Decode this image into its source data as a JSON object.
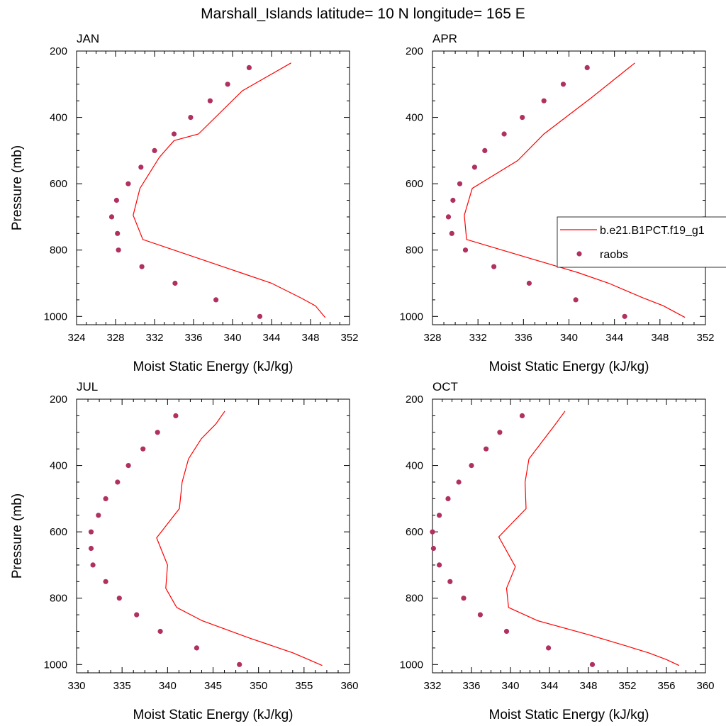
{
  "title": "Marshall_Islands  latitude= 10 N longitude= 165 E",
  "colors": {
    "model_line": "#ff0000",
    "raobs_marker": "#b03060"
  },
  "legend": {
    "items": [
      {
        "label": "b.e21.B1PCT.f19_g1",
        "symbol": "line"
      },
      {
        "label": "raobs",
        "symbol": "marker"
      }
    ]
  },
  "chart_data": [
    {
      "type": "line",
      "title": "JAN",
      "xlabel": "Moist Static Energy (kJ/kg)",
      "ylabel": "Pressure (mb)",
      "xlim": [
        324,
        352
      ],
      "ylim": [
        1025,
        200
      ],
      "xticks": [
        324,
        328,
        332,
        336,
        340,
        344,
        348,
        352
      ],
      "yticks": [
        200,
        400,
        600,
        800,
        1000
      ],
      "series": [
        {
          "name": "b.e21.B1PCT.f19_g1",
          "style": "line",
          "x": [
            349.5,
            348.5,
            347.0,
            344.0,
            340.8,
            330.8,
            329.8,
            330.5,
            332.5,
            334.0,
            336.5,
            341.0,
            346.0
          ],
          "y": [
            1003,
            968,
            944,
            900,
            868,
            768,
            695,
            614,
            520,
            470,
            450,
            320,
            236
          ]
        },
        {
          "name": "raobs",
          "style": "marker",
          "x": [
            342.8,
            338.3,
            334.1,
            330.7,
            328.3,
            328.2,
            327.6,
            328.1,
            329.3,
            330.6,
            332.0,
            334.0,
            335.7,
            337.7,
            339.5,
            341.7
          ],
          "y": [
            1000,
            950,
            900,
            850,
            800,
            750,
            700,
            650,
            600,
            550,
            500,
            450,
            400,
            350,
            300,
            250
          ]
        }
      ]
    },
    {
      "type": "line",
      "title": "APR",
      "xlabel": "Moist Static Energy (kJ/kg)",
      "ylabel": "",
      "xlim": [
        328,
        352
      ],
      "ylim": [
        1025,
        200
      ],
      "xticks": [
        328,
        332,
        336,
        340,
        344,
        348,
        352
      ],
      "yticks": [
        200,
        400,
        600,
        800,
        1000
      ],
      "series": [
        {
          "name": "b.e21.B1PCT.f19_g1",
          "style": "line",
          "x": [
            350.2,
            348.3,
            346.5,
            343.5,
            340.8,
            331.0,
            330.8,
            331.5,
            335.5,
            337.8,
            342.0,
            345.8
          ],
          "y": [
            1003,
            968,
            944,
            900,
            868,
            768,
            695,
            614,
            530,
            450,
            340,
            236
          ]
        },
        {
          "name": "raobs",
          "style": "marker",
          "x": [
            344.9,
            340.6,
            336.5,
            333.4,
            330.9,
            329.7,
            329.4,
            329.8,
            330.4,
            331.7,
            332.6,
            334.3,
            335.9,
            337.8,
            339.5,
            341.6
          ],
          "y": [
            1000,
            950,
            900,
            850,
            800,
            750,
            700,
            650,
            600,
            550,
            500,
            450,
            400,
            350,
            300,
            250
          ]
        }
      ]
    },
    {
      "type": "line",
      "title": "JUL",
      "xlabel": "Moist Static Energy (kJ/kg)",
      "ylabel": "Pressure (mb)",
      "xlim": [
        330,
        360
      ],
      "ylim": [
        1025,
        200
      ],
      "xticks": [
        330,
        335,
        340,
        345,
        350,
        355,
        360
      ],
      "yticks": [
        200,
        400,
        600,
        800,
        1000
      ],
      "series": [
        {
          "name": "b.e21.B1PCT.f19_g1",
          "style": "line",
          "x": [
            357.0,
            355.5,
            353.8,
            349.0,
            343.8,
            341.0,
            339.8,
            340.0,
            338.8,
            341.3,
            341.6,
            342.3,
            343.7,
            345.3,
            346.3
          ],
          "y": [
            1003,
            985,
            965,
            920,
            868,
            828,
            770,
            700,
            618,
            530,
            450,
            380,
            320,
            275,
            236
          ]
        },
        {
          "name": "raobs",
          "style": "marker",
          "x": [
            347.9,
            343.2,
            339.2,
            336.6,
            334.7,
            333.2,
            331.8,
            331.6,
            331.6,
            332.4,
            333.2,
            334.5,
            335.7,
            337.3,
            338.9,
            340.9
          ],
          "y": [
            1000,
            950,
            900,
            850,
            800,
            750,
            700,
            650,
            600,
            550,
            500,
            450,
            400,
            350,
            300,
            250
          ]
        }
      ]
    },
    {
      "type": "line",
      "title": "OCT",
      "xlabel": "Moist Static Energy (kJ/kg)",
      "ylabel": "",
      "xlim": [
        332,
        360
      ],
      "ylim": [
        1025,
        200
      ],
      "xticks": [
        332,
        336,
        340,
        344,
        348,
        352,
        356,
        360
      ],
      "yticks": [
        200,
        400,
        600,
        800,
        1000
      ],
      "series": [
        {
          "name": "b.e21.B1PCT.f19_g1",
          "style": "line",
          "x": [
            357.3,
            356.0,
            354.2,
            352.0,
            348.0,
            342.8,
            339.8,
            339.6,
            340.5,
            338.8,
            341.6,
            341.5,
            341.9,
            343.2,
            344.5,
            345.6
          ],
          "y": [
            1003,
            985,
            965,
            945,
            910,
            868,
            828,
            770,
            705,
            615,
            530,
            450,
            380,
            330,
            280,
            236
          ]
        },
        {
          "name": "raobs",
          "style": "marker",
          "x": [
            348.4,
            343.9,
            339.6,
            336.9,
            335.2,
            333.8,
            332.7,
            332.1,
            332.0,
            332.7,
            333.6,
            334.7,
            336.0,
            337.5,
            338.9,
            341.2
          ],
          "y": [
            1000,
            950,
            900,
            850,
            800,
            750,
            700,
            650,
            600,
            550,
            500,
            450,
            400,
            350,
            300,
            250
          ]
        }
      ]
    }
  ]
}
